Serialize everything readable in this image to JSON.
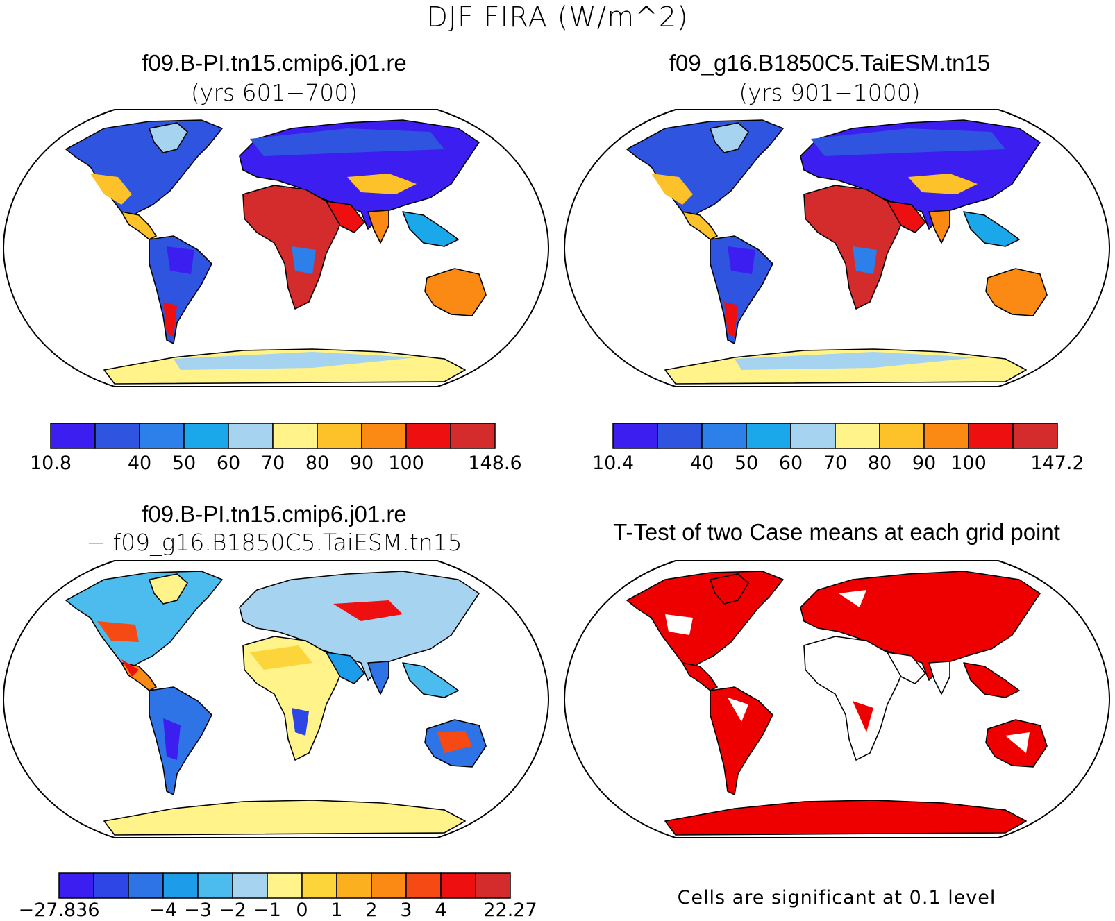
{
  "figure_title": "DJF FIRA (W/m^2)",
  "panels": [
    {
      "title": "f09.B-PI.tn15.cmip6.j01.re",
      "subtitle": "(yrs 601−700)",
      "colorbar": {
        "labels": [
          "10.8",
          "40",
          "50",
          "60",
          "70",
          "80",
          "90",
          "100",
          "148.6"
        ],
        "colors": [
          "#3d1ef0",
          "#2f54e0",
          "#2d7fea",
          "#1ba8ea",
          "#a6d4f0",
          "#fff38a",
          "#fdc22a",
          "#fb8a14",
          "#ee1010",
          "#d42c2c"
        ]
      }
    },
    {
      "title": "f09_g16.B1850C5.TaiESM.tn15",
      "subtitle": "(yrs 901−1000)",
      "colorbar": {
        "labels": [
          "10.4",
          "40",
          "50",
          "60",
          "70",
          "80",
          "90",
          "100",
          "147.2"
        ],
        "colors": [
          "#3d1ef0",
          "#2f54e0",
          "#2d7fea",
          "#1ba8ea",
          "#a6d4f0",
          "#fff38a",
          "#fdc22a",
          "#fb8a14",
          "#ee1010",
          "#d42c2c"
        ]
      }
    },
    {
      "title": "f09.B-PI.tn15.cmip6.j01.re",
      "subtitle": "− f09_g16.B1850C5.TaiESM.tn15",
      "colorbar": {
        "labels": [
          "−27.836",
          "−4",
          "−3",
          "−2",
          "−1",
          "0",
          "1",
          "2",
          "3",
          "4",
          "22.27"
        ],
        "colors": [
          "#3d1ef0",
          "#2f46e6",
          "#2f74e6",
          "#1d9cea",
          "#4cbcef",
          "#a6d4f0",
          "#fff38a",
          "#fbd53a",
          "#fbb020",
          "#fb8a14",
          "#f54a14",
          "#ee1010",
          "#d42c2c"
        ]
      }
    },
    {
      "title": "T-Test of two Case means at each grid point",
      "footnote": "Cells are significant at 0.1 level",
      "significant_color": "#ee0000"
    }
  ]
}
